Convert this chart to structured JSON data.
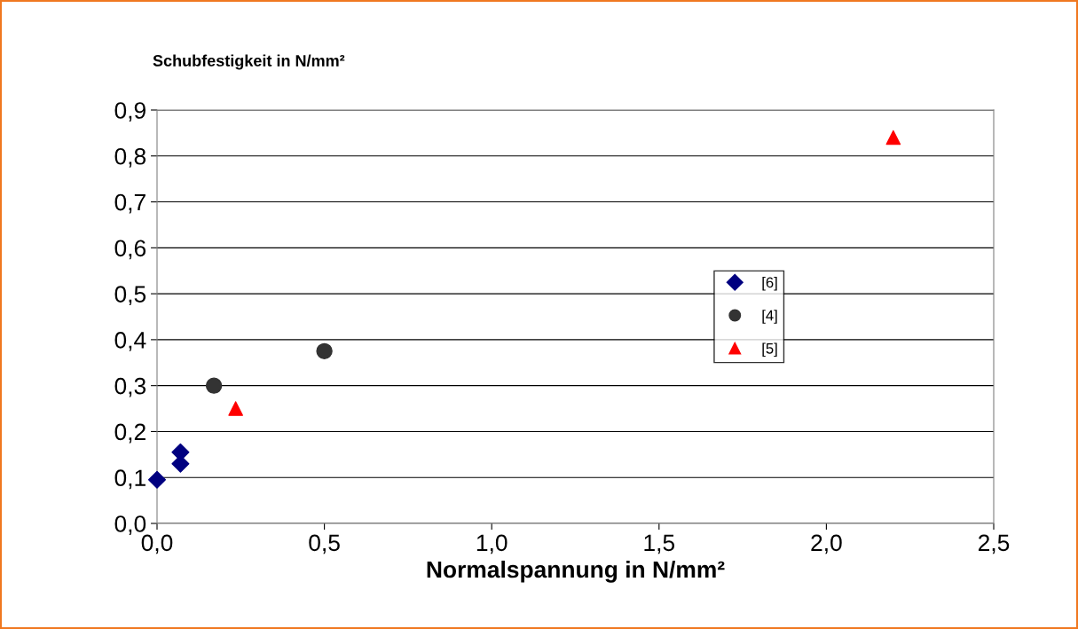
{
  "chart_data": {
    "type": "scatter",
    "ylabel": "Schubfestigkeit in N/mm²",
    "xlabel": "Normalspannung in N/mm²",
    "xlim": [
      0,
      2.5
    ],
    "xticks": [
      {
        "value": 0,
        "label": "0,0"
      },
      {
        "value": 0.5,
        "label": "0,5"
      },
      {
        "value": 1.0,
        "label": "1,0"
      },
      {
        "value": 1.5,
        "label": "1,5"
      },
      {
        "value": 2.0,
        "label": "2,0"
      },
      {
        "value": 2.5,
        "label": "2,5"
      }
    ],
    "ylim": [
      0,
      0.9
    ],
    "yticks": [
      {
        "value": 0,
        "label": "0,0"
      },
      {
        "value": 0.1,
        "label": "0,1"
      },
      {
        "value": 0.2,
        "label": "0,2"
      },
      {
        "value": 0.3,
        "label": "0,3"
      },
      {
        "value": 0.4,
        "label": "0,4"
      },
      {
        "value": 0.5,
        "label": "0,5"
      },
      {
        "value": 0.6,
        "label": "0,6"
      },
      {
        "value": 0.7,
        "label": "0,7"
      },
      {
        "value": 0.8,
        "label": "0,8"
      },
      {
        "value": 0.9,
        "label": "0,9"
      }
    ],
    "grid": "y",
    "legend": "right",
    "series": [
      {
        "name": "[6]",
        "color": "#000080",
        "marker": "diamond",
        "x": [
          0,
          0.07,
          0.07
        ],
        "values": [
          0.095,
          0.13,
          0.155
        ]
      },
      {
        "name": "[4]",
        "color": "#333333",
        "marker": "circle",
        "x": [
          0.17,
          0.5
        ],
        "values": [
          0.3,
          0.375
        ]
      },
      {
        "name": "[5]",
        "color": "#ff0000",
        "marker": "triangle",
        "x": [
          0.235,
          2.2
        ],
        "values": [
          0.25,
          0.84
        ]
      }
    ]
  }
}
